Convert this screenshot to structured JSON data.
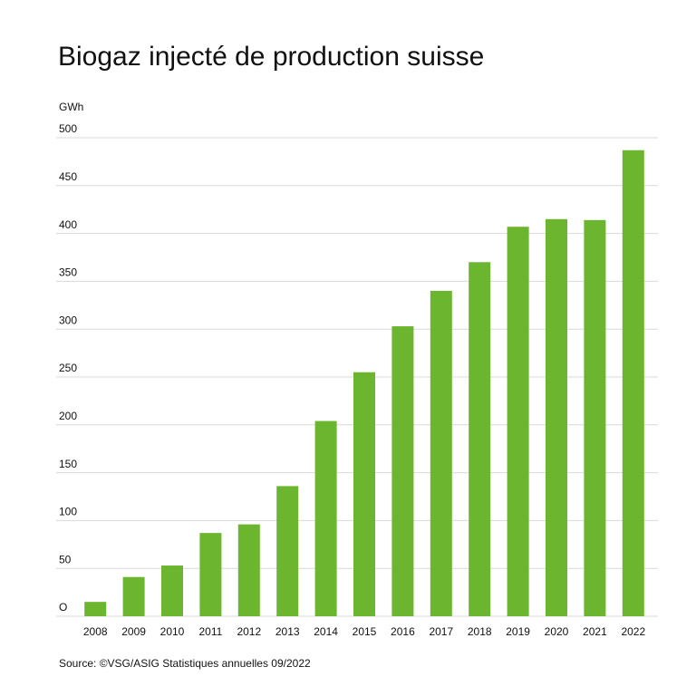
{
  "chart_data": {
    "type": "bar",
    "title": "Biogaz injecté de production suisse",
    "y_unit": "GWh",
    "source": "Source: ©VSG/ASIG Statistiques annuelles 09/2022",
    "categories": [
      "2008",
      "2009",
      "2010",
      "2011",
      "2012",
      "2013",
      "2014",
      "2015",
      "2016",
      "2017",
      "2018",
      "2019",
      "2020",
      "2021",
      "2022"
    ],
    "values": [
      15,
      41,
      53,
      87,
      96,
      136,
      204,
      255,
      303,
      340,
      370,
      407,
      415,
      414,
      487
    ],
    "color": "#6cb52f",
    "ylim": [
      0,
      500
    ],
    "yticks": [
      {
        "value": 0,
        "label": "O"
      },
      50,
      100,
      150,
      200,
      250,
      300,
      350,
      400,
      450,
      500
    ],
    "grid": true
  }
}
